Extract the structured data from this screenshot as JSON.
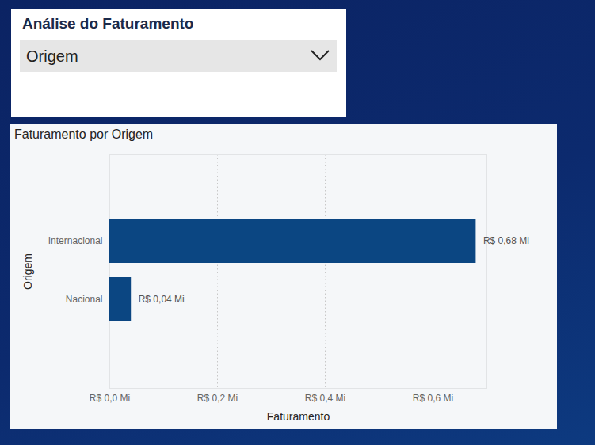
{
  "slicer": {
    "title": "Análise do Faturamento",
    "value": "Origem"
  },
  "chart_data": {
    "type": "bar",
    "orientation": "horizontal",
    "title": "Faturamento por Origem",
    "x_label": "Faturamento",
    "y_label": "Origem",
    "categories": [
      "Internacional",
      "Nacional"
    ],
    "values": [
      0.68,
      0.04
    ],
    "value_labels": [
      "R$ 0,68 Mi",
      "R$ 0,04 Mi"
    ],
    "data_labels": true,
    "color": "#0b4682",
    "xlim": [
      0,
      0.7
    ],
    "xticks": [
      {
        "value": 0,
        "label": "R$ 0,0 Mi"
      },
      {
        "value": 0.2,
        "label": "R$ 0,2 Mi"
      },
      {
        "value": 0.4,
        "label": "R$ 0,4 Mi"
      },
      {
        "value": 0.6,
        "label": "R$ 0,6 Mi"
      }
    ],
    "grid": true
  }
}
